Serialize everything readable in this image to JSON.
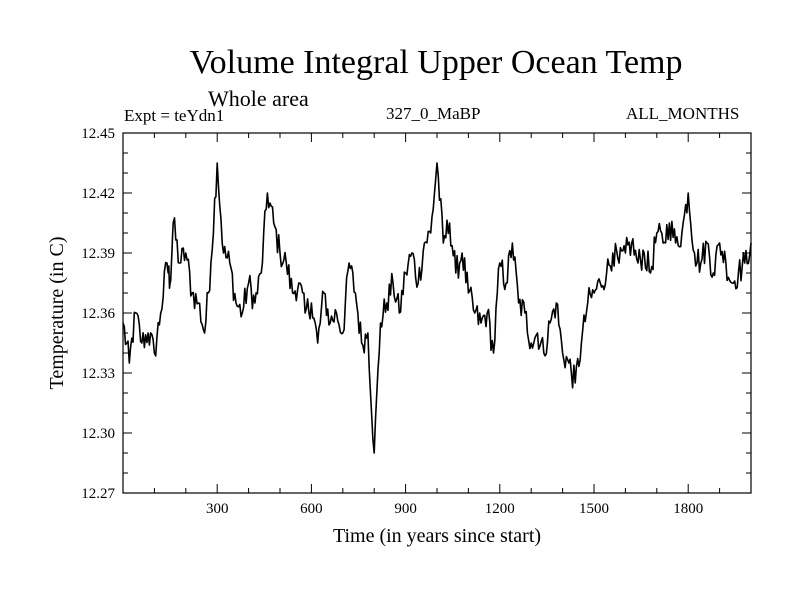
{
  "chart_data": {
    "type": "line",
    "title": "Volume Integral Upper Ocean Temp",
    "subtitle": "Whole area",
    "experiment": "Expt = teYdn1",
    "run_label": "327_0_MaBP",
    "months_label": "ALL_MONTHS",
    "xlabel": "Time (in years since start)",
    "ylabel": "Temperature (in C)",
    "xlim": [
      0,
      2000
    ],
    "ylim": [
      12.27,
      12.45
    ],
    "xticks": [
      300,
      600,
      900,
      1200,
      1500,
      1800
    ],
    "xtick_labels": [
      "300",
      "600",
      "900",
      "1200",
      "1500",
      "1800"
    ],
    "yticks": [
      12.27,
      12.3,
      12.33,
      12.36,
      12.39,
      12.42,
      12.45
    ],
    "ytick_labels": [
      "12.27",
      "12.30",
      "12.33",
      "12.36",
      "12.39",
      "12.42",
      "12.45"
    ],
    "series": [
      {
        "name": "Volume integral upper ocean temperature",
        "color": "#000000",
        "x": [
          0,
          20,
          40,
          60,
          80,
          100,
          120,
          140,
          150,
          160,
          180,
          200,
          220,
          240,
          260,
          280,
          300,
          320,
          340,
          360,
          380,
          400,
          420,
          440,
          460,
          480,
          500,
          520,
          540,
          560,
          580,
          600,
          620,
          640,
          660,
          680,
          700,
          720,
          740,
          760,
          780,
          800,
          820,
          840,
          860,
          880,
          900,
          920,
          940,
          960,
          980,
          1000,
          1020,
          1040,
          1060,
          1080,
          1100,
          1120,
          1140,
          1160,
          1180,
          1200,
          1220,
          1240,
          1260,
          1280,
          1300,
          1320,
          1340,
          1360,
          1380,
          1400,
          1420,
          1440,
          1460,
          1480,
          1500,
          1520,
          1540,
          1560,
          1580,
          1600,
          1620,
          1640,
          1660,
          1680,
          1700,
          1720,
          1740,
          1760,
          1780,
          1800,
          1820,
          1840,
          1860,
          1880,
          1900,
          1920,
          1940,
          1960,
          1980,
          2000
        ],
        "values": [
          12.355,
          12.335,
          12.36,
          12.345,
          12.35,
          12.34,
          12.36,
          12.385,
          12.375,
          12.405,
          12.385,
          12.39,
          12.37,
          12.365,
          12.35,
          12.385,
          12.435,
          12.39,
          12.385,
          12.365,
          12.36,
          12.375,
          12.365,
          12.38,
          12.42,
          12.405,
          12.39,
          12.385,
          12.37,
          12.375,
          12.36,
          12.365,
          12.345,
          12.37,
          12.355,
          12.36,
          12.35,
          12.385,
          12.37,
          12.345,
          12.35,
          12.29,
          12.355,
          12.365,
          12.375,
          12.36,
          12.38,
          12.39,
          12.375,
          12.395,
          12.4,
          12.435,
          12.395,
          12.405,
          12.38,
          12.39,
          12.37,
          12.36,
          12.355,
          12.36,
          12.34,
          12.385,
          12.375,
          12.395,
          12.365,
          12.36,
          12.345,
          12.35,
          12.34,
          12.355,
          12.365,
          12.34,
          12.335,
          12.325,
          12.345,
          12.365,
          12.37,
          12.375,
          12.38,
          12.39,
          12.385,
          12.39,
          12.395,
          12.385,
          12.39,
          12.38,
          12.4,
          12.395,
          12.405,
          12.395,
          12.4,
          12.42,
          12.39,
          12.385,
          12.395,
          12.38,
          12.395,
          12.385,
          12.375,
          12.38,
          12.385,
          12.395
        ]
      }
    ],
    "grid": false
  }
}
